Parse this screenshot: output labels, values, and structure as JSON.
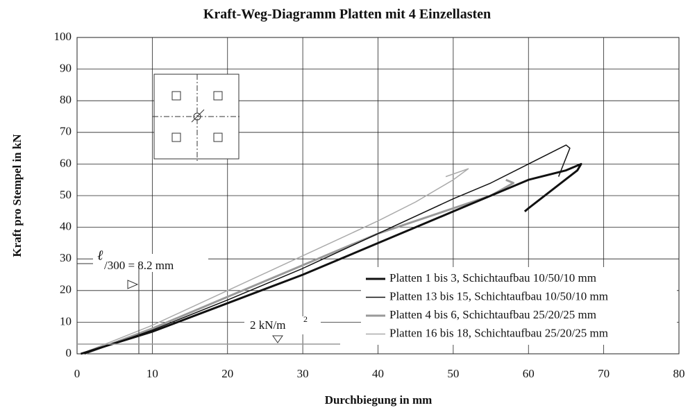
{
  "chart_data": {
    "type": "line",
    "title": "Kraft-Weg-Diagramm Platten mit 4 Einzellasten",
    "xlabel": "Durchbiegung in mm",
    "ylabel": "Kraft pro Stempel in kN",
    "xlim": [
      0,
      80
    ],
    "xticks": [
      0,
      10,
      20,
      30,
      40,
      50,
      60,
      70,
      80
    ],
    "ylim": [
      0,
      100
    ],
    "yticks": [
      0,
      10,
      20,
      30,
      40,
      50,
      60,
      70,
      80,
      90,
      100
    ],
    "grid": true,
    "legend": "lower right",
    "annotations": [
      "ℓ",
      "/300 = 8.2 mm",
      "2 kN/m",
      "2"
    ],
    "series": [
      {
        "name": "Platten 1 bis 3, Schichtaufbau 10/50/10 mm",
        "color": "#111111",
        "line_width": 3,
        "x": [
          0.5,
          10,
          20,
          30,
          40,
          50,
          55,
          60,
          65,
          67,
          66.5,
          60,
          59.5
        ],
        "values": [
          0,
          7,
          16,
          25,
          35,
          45,
          50,
          55,
          58,
          60,
          58,
          46,
          45
        ]
      },
      {
        "name": "Platten 13 bis 15, Schichtaufbau 10/50/10 mm",
        "color": "#111111",
        "line_width": 1.5,
        "x": [
          1,
          10,
          20,
          30,
          40,
          50,
          55,
          60,
          65,
          65.5,
          64
        ],
        "values": [
          0,
          7.5,
          17,
          27,
          38,
          49,
          54,
          60,
          66,
          65,
          56
        ]
      },
      {
        "name": "Platten 4 bis 6, Schichtaufbau 25/20/25 mm",
        "color": "#999999",
        "line_width": 3,
        "x": [
          1,
          10,
          20,
          30,
          40,
          50,
          55,
          58,
          57
        ],
        "values": [
          0,
          8,
          18,
          28,
          38,
          46,
          50,
          54,
          55
        ]
      },
      {
        "name": "Platten 16 bis 18, Schichtaufbau 25/20/25 mm",
        "color": "#aaaaaa",
        "line_width": 1.5,
        "x": [
          0.5,
          10,
          20,
          30,
          40,
          45,
          50,
          52,
          49
        ],
        "values": [
          0,
          9,
          20,
          31,
          42,
          48,
          55,
          58.5,
          56
        ]
      }
    ]
  }
}
